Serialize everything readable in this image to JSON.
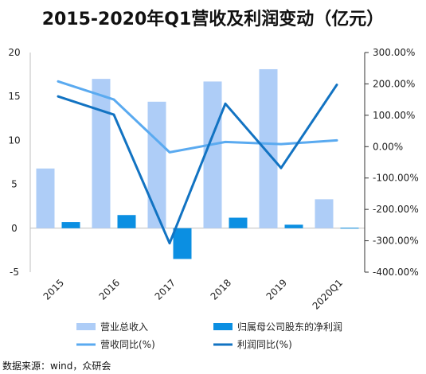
{
  "chart_data": {
    "type": "bar",
    "title": "2015-2020年Q1营收及利润变动（亿元）",
    "categories": [
      "2015",
      "2016",
      "2017",
      "2018",
      "2019",
      "2020Q1"
    ],
    "left_axis": {
      "min": -5,
      "max": 20,
      "ticks": [
        "-5",
        "0",
        "5",
        "10",
        "15",
        "20"
      ]
    },
    "right_axis": {
      "min": -400,
      "max": 300,
      "ticks": [
        "-400.00%",
        "-300.00%",
        "-200.00%",
        "-100.00%",
        "0.00%",
        "100.00%",
        "200.00%",
        "300.00%"
      ]
    },
    "series": [
      {
        "name": "营业总收入",
        "kind": "bar",
        "axis": "left",
        "color": "#aecdf7",
        "values": [
          6.8,
          17.0,
          14.4,
          16.7,
          18.1,
          3.3
        ]
      },
      {
        "name": "归属母公司股东的净利润",
        "kind": "bar",
        "axis": "left",
        "color": "#0b8fe2",
        "values": [
          0.7,
          1.5,
          -3.5,
          1.2,
          0.4,
          0.05
        ]
      },
      {
        "name": "营收同比(%)",
        "kind": "line",
        "axis": "right",
        "color": "#5aaaf0",
        "values": [
          208,
          150,
          -18,
          15,
          8,
          20
        ]
      },
      {
        "name": "利润同比(%)",
        "kind": "line",
        "axis": "right",
        "color": "#1273c2",
        "values": [
          160,
          102,
          -308,
          137,
          -68,
          197
        ]
      }
    ],
    "grid": false,
    "legend_position": "bottom"
  },
  "source": "数据来源：wind，众研会"
}
